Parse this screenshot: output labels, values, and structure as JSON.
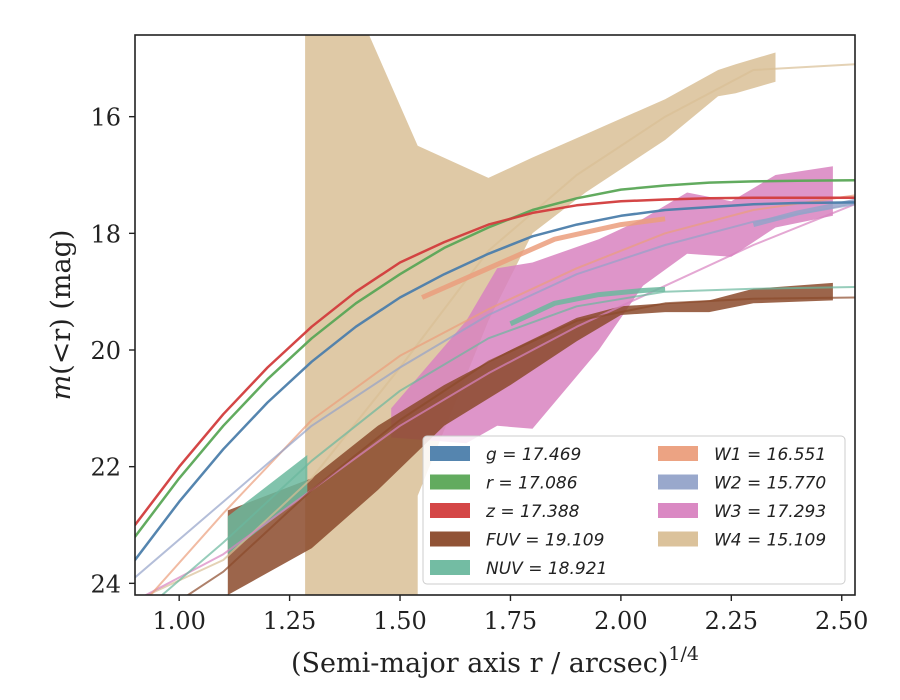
{
  "chart_data": {
    "type": "line",
    "xlabel": "(Semi-major axis r / arcsec)",
    "xlabel_sup": "1/4",
    "ylabel_parts": [
      "m",
      "(<r) (mag)"
    ],
    "xlim": [
      0.9,
      2.53
    ],
    "ylim": [
      24.2,
      14.6
    ],
    "y_inverted": true,
    "x_ticks": [
      "1.00",
      "1.25",
      "1.50",
      "1.75",
      "2.00",
      "2.25",
      "2.50"
    ],
    "x_tick_values": [
      1.0,
      1.25,
      1.5,
      1.75,
      2.0,
      2.25,
      2.5
    ],
    "y_ticks": [
      "16",
      "18",
      "20",
      "22",
      "24"
    ],
    "y_tick_values": [
      16,
      18,
      20,
      22,
      24
    ],
    "grid": false,
    "legend": {
      "placement": "lower-right",
      "columns": 2,
      "entries": [
        {
          "name": "g",
          "text": "g = 17.469",
          "color": "#4c7eab"
        },
        {
          "name": "r",
          "text": "r = 17.086",
          "color": "#5aa656"
        },
        {
          "name": "z",
          "text": "z = 17.388",
          "color": "#d23c3c"
        },
        {
          "name": "FUV",
          "text": "FUV = 19.109",
          "color": "#8b4a2b"
        },
        {
          "name": "NUV",
          "text": "NUV = 18.921",
          "color": "#6bb89e"
        },
        {
          "name": "W1",
          "text": "W1 = 16.551",
          "color": "#eb9e7c"
        },
        {
          "name": "W2",
          "text": "W2 = 15.770",
          "color": "#94a3c9"
        },
        {
          "name": "W3",
          "text": "W3 = 17.293",
          "color": "#d883c0"
        },
        {
          "name": "W4",
          "text": "W4 = 15.109",
          "color": "#d9bf96"
        }
      ]
    },
    "series": [
      {
        "name": "W4",
        "color": "#d9bf96",
        "model": {
          "x": [
            0.9,
            1.1,
            1.3,
            1.5,
            1.7,
            1.9,
            2.1,
            2.3,
            2.53
          ],
          "y": [
            24.3,
            23.6,
            22.2,
            20.3,
            18.3,
            17.0,
            16.0,
            15.2,
            15.1
          ]
        },
        "band_x": [
          1.285,
          1.285,
          1.43,
          1.43,
          1.54,
          1.54,
          1.7,
          1.8,
          1.92,
          2.1,
          2.22,
          2.26,
          2.35
        ],
        "band_upper": [
          14.6,
          14.6,
          14.6,
          14.6,
          16.5,
          16.5,
          17.05,
          16.7,
          16.3,
          15.7,
          15.2,
          15.1,
          14.9
        ],
        "band_lower": [
          24.2,
          24.2,
          24.2,
          24.2,
          24.2,
          22.5,
          19.5,
          18.0,
          17.3,
          16.4,
          15.65,
          15.6,
          15.4
        ]
      },
      {
        "name": "W3",
        "color": "#d883c0",
        "model": {
          "x": [
            0.9,
            1.1,
            1.3,
            1.5,
            1.7,
            1.9,
            2.1,
            2.3,
            2.53
          ],
          "y": [
            24.3,
            23.5,
            22.4,
            21.3,
            20.4,
            19.6,
            18.9,
            18.2,
            17.5
          ]
        },
        "band_x": [
          1.48,
          1.65,
          1.72,
          1.8,
          1.95,
          2.05,
          2.15,
          2.25,
          2.35,
          2.48
        ],
        "band_upper": [
          21.0,
          19.5,
          18.6,
          18.5,
          18.1,
          17.75,
          17.3,
          17.45,
          17.0,
          16.85
        ],
        "band_lower": [
          21.5,
          21.6,
          21.3,
          21.35,
          20.0,
          18.9,
          18.35,
          18.4,
          17.9,
          17.7
        ]
      },
      {
        "name": "FUV",
        "color": "#8b4a2b",
        "model": {
          "x": [
            0.9,
            1.1,
            1.3,
            1.5,
            1.7,
            1.9,
            2.1,
            2.3,
            2.53
          ],
          "y": [
            24.8,
            23.8,
            22.4,
            21.2,
            20.2,
            19.5,
            19.2,
            19.12,
            19.1
          ]
        },
        "band_x": [
          1.11,
          1.3,
          1.45,
          1.6,
          1.75,
          1.9,
          2.0,
          2.1,
          2.2,
          2.3,
          2.48
        ],
        "band_upper": [
          22.75,
          22.2,
          21.3,
          20.6,
          20.0,
          19.45,
          19.25,
          19.2,
          19.15,
          18.95,
          18.85
        ],
        "band_lower": [
          24.2,
          23.4,
          22.4,
          21.3,
          20.6,
          19.85,
          19.4,
          19.35,
          19.35,
          19.2,
          19.15
        ]
      },
      {
        "name": "NUV",
        "color": "#6bb89e",
        "model": {
          "x": [
            0.9,
            1.1,
            1.3,
            1.5,
            1.7,
            1.9,
            2.1,
            2.3,
            2.53
          ],
          "y": [
            24.6,
            23.3,
            21.9,
            20.7,
            19.8,
            19.25,
            19.0,
            18.95,
            18.92
          ]
        },
        "band_x": [
          1.11,
          1.29
        ],
        "band_upper": [
          22.85,
          21.8
        ],
        "band_lower": [
          23.5,
          22.45
        ],
        "thick": {
          "x": [
            1.75,
            1.85,
            1.95,
            2.05,
            2.1
          ],
          "y": [
            19.55,
            19.2,
            19.05,
            18.98,
            18.96
          ]
        }
      },
      {
        "name": "W1",
        "color": "#eb9e7c",
        "model": {
          "x": [
            0.9,
            1.1,
            1.3,
            1.5,
            1.7,
            1.9,
            2.1,
            2.3,
            2.53
          ],
          "y": [
            24.5,
            22.8,
            21.2,
            20.1,
            19.3,
            18.6,
            18.0,
            17.6,
            17.35
          ]
        },
        "thick": {
          "x": [
            1.55,
            1.7,
            1.85,
            2.0,
            2.1
          ],
          "y": [
            19.1,
            18.6,
            18.1,
            17.85,
            17.75
          ]
        }
      },
      {
        "name": "W2",
        "color": "#94a3c9",
        "model": {
          "x": [
            0.9,
            1.1,
            1.3,
            1.5,
            1.7,
            1.9,
            2.1,
            2.3,
            2.53
          ],
          "y": [
            23.9,
            22.6,
            21.3,
            20.3,
            19.4,
            18.7,
            18.2,
            17.8,
            17.5
          ]
        },
        "thick": {
          "x": [
            2.3,
            2.4,
            2.53
          ],
          "y": [
            17.85,
            17.65,
            17.45
          ]
        }
      },
      {
        "name": "g",
        "color": "#4c7eab",
        "model": {
          "x": [
            0.9,
            1.0,
            1.1,
            1.2,
            1.3,
            1.4,
            1.5,
            1.6,
            1.7,
            1.8,
            1.9,
            2.0,
            2.1,
            2.2,
            2.3,
            2.4,
            2.53
          ],
          "y": [
            23.6,
            22.6,
            21.7,
            20.9,
            20.2,
            19.6,
            19.1,
            18.7,
            18.35,
            18.05,
            17.85,
            17.7,
            17.6,
            17.55,
            17.5,
            17.48,
            17.47
          ]
        }
      },
      {
        "name": "r",
        "color": "#5aa656",
        "model": {
          "x": [
            0.9,
            1.0,
            1.1,
            1.2,
            1.3,
            1.4,
            1.5,
            1.6,
            1.7,
            1.8,
            1.9,
            2.0,
            2.1,
            2.2,
            2.3,
            2.4,
            2.53
          ],
          "y": [
            23.2,
            22.2,
            21.3,
            20.5,
            19.8,
            19.2,
            18.7,
            18.25,
            17.9,
            17.6,
            17.4,
            17.25,
            17.18,
            17.13,
            17.11,
            17.1,
            17.09
          ]
        }
      },
      {
        "name": "z",
        "color": "#d23c3c",
        "model": {
          "x": [
            0.9,
            1.0,
            1.1,
            1.2,
            1.3,
            1.4,
            1.5,
            1.6,
            1.7,
            1.8,
            1.9,
            2.0,
            2.1,
            2.2,
            2.3,
            2.4,
            2.53
          ],
          "y": [
            23.0,
            22.0,
            21.1,
            20.3,
            19.6,
            19.0,
            18.5,
            18.15,
            17.85,
            17.65,
            17.52,
            17.45,
            17.42,
            17.4,
            17.39,
            17.39,
            17.39
          ]
        }
      }
    ]
  }
}
